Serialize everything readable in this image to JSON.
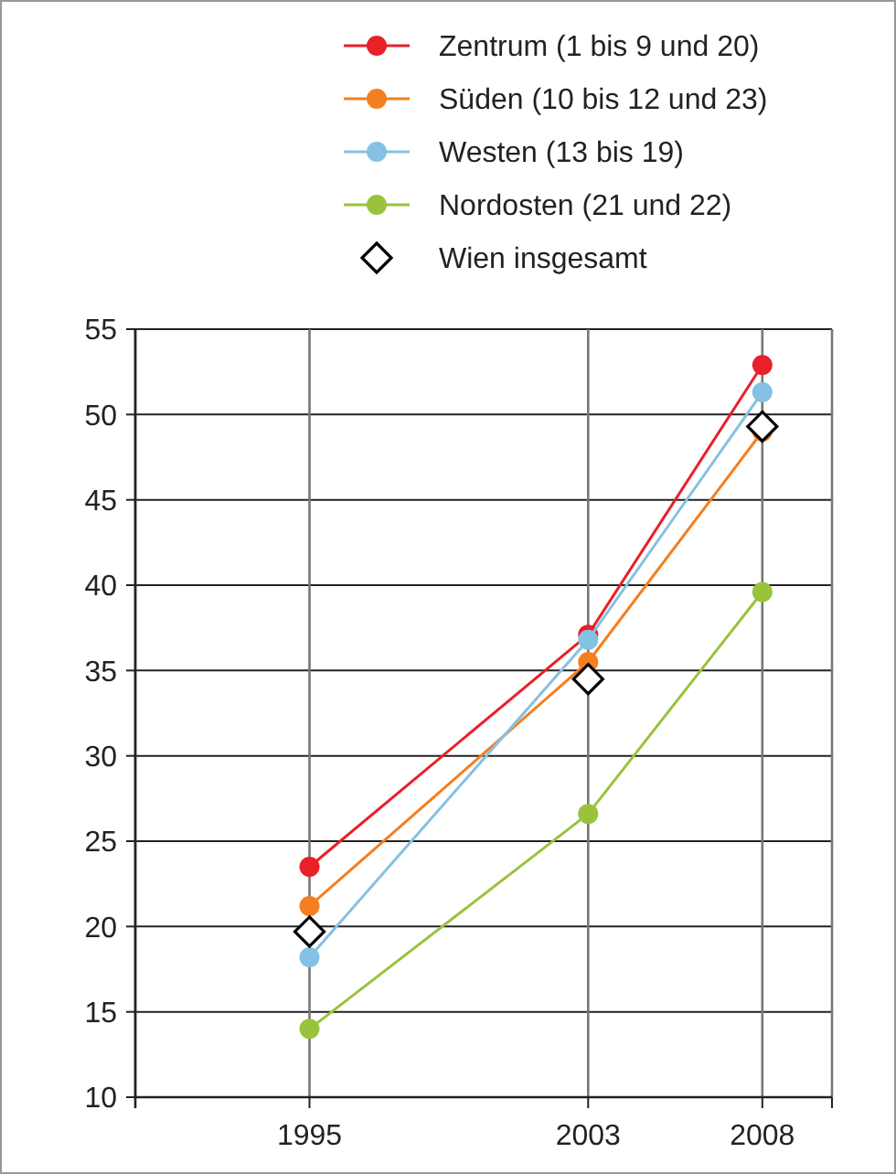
{
  "chart_data": {
    "type": "line",
    "x": [
      1995,
      2003,
      2008
    ],
    "xlim": [
      1990,
      2010
    ],
    "xticks": [
      {
        "value": 1990,
        "label": null
      },
      1995,
      2003,
      2008,
      {
        "value": 2010,
        "label": null
      }
    ],
    "ylim": [
      10,
      55
    ],
    "yticks": [
      10,
      15,
      20,
      25,
      30,
      35,
      40,
      45,
      50,
      55
    ],
    "grid": true,
    "legend": "top right",
    "marker": "circle",
    "series": [
      {
        "name": "Zentrum (1 bis 9 und 20)",
        "color": "#e8202a",
        "values": [
          23.5,
          37.1,
          52.9
        ]
      },
      {
        "name": "Süden (10 bis 12 und 23)",
        "color": "#f47f20",
        "values": [
          21.2,
          35.5,
          49.0
        ]
      },
      {
        "name": "Westen (13 bis 19)",
        "color": "#85c1e3",
        "values": [
          18.2,
          36.8,
          51.3
        ]
      },
      {
        "name": "Nordosten (21 und 22)",
        "color": "#99c33b",
        "values": [
          14.0,
          26.6,
          39.6
        ]
      },
      {
        "name": "Wien insgesamt",
        "type": "scatter",
        "marker": "diamond",
        "color": "#000000",
        "values": [
          19.7,
          34.5,
          49.3
        ]
      }
    ]
  }
}
